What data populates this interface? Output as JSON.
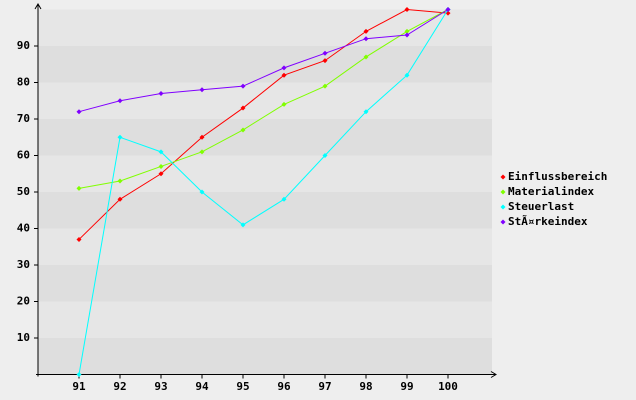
{
  "chart_data": {
    "type": "line",
    "x": [
      91,
      92,
      93,
      94,
      95,
      96,
      97,
      98,
      99,
      100
    ],
    "xlim": [
      90,
      101
    ],
    "xticks": [
      91,
      92,
      93,
      94,
      95,
      96,
      97,
      98,
      99,
      100
    ],
    "ylim": [
      0,
      100
    ],
    "yticks": [
      10,
      20,
      30,
      40,
      50,
      60,
      70,
      80,
      90
    ],
    "grid": true,
    "legend": "right",
    "series": [
      {
        "name": "Einflussbereich",
        "color": "#ff0000",
        "values": [
          37,
          48,
          55,
          65,
          73,
          82,
          86,
          94,
          100,
          99
        ]
      },
      {
        "name": "Materialindex",
        "color": "#80ff00",
        "values": [
          51,
          53,
          57,
          61,
          67,
          74,
          79,
          87,
          94,
          100
        ]
      },
      {
        "name": "Steuerlast",
        "color": "#00ffff",
        "values": [
          0,
          65,
          61,
          50,
          41,
          48,
          60,
          72,
          82,
          100
        ]
      },
      {
        "name": "StÃ¤rkeindex",
        "color": "#8000ff",
        "values": [
          72,
          75,
          77,
          78,
          79,
          84,
          88,
          92,
          93,
          100
        ]
      }
    ]
  }
}
